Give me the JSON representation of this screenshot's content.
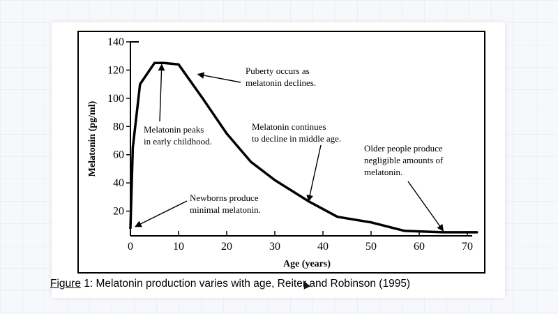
{
  "chart_data": {
    "type": "line",
    "xlabel": "Age (years)",
    "ylabel": "Melatonin (pg/ml)",
    "xlim": [
      0,
      70
    ],
    "ylim": [
      0,
      140
    ],
    "xticks": [
      0,
      10,
      20,
      30,
      40,
      50,
      60,
      70
    ],
    "yticks": [
      20,
      40,
      60,
      80,
      100,
      120,
      140
    ],
    "grid": false,
    "series": [
      {
        "x": [
          0,
          0.5,
          2,
          5,
          7,
          10,
          15,
          20,
          25,
          30,
          37,
          43,
          50,
          57,
          65,
          72
        ],
        "y": [
          8,
          65,
          110,
          125,
          125,
          124,
          100,
          75,
          55,
          42,
          27,
          16,
          12,
          6,
          5,
          5
        ]
      }
    ],
    "annotations": [
      {
        "id": "puberty",
        "lines": [
          "Puberty occurs as",
          "melatonin declines."
        ],
        "points_to": {
          "x": 14,
          "y": 117
        }
      },
      {
        "id": "peak",
        "lines": [
          "Melatonin peaks",
          "in early childhood."
        ],
        "points_to": {
          "x": 6.5,
          "y": 124
        }
      },
      {
        "id": "middle-age",
        "lines": [
          "Melatonin continues",
          "to decline in middle age."
        ],
        "points_to": {
          "x": 37,
          "y": 27
        }
      },
      {
        "id": "older",
        "lines": [
          "Older people produce",
          "negligible amounts of",
          "melatonin."
        ],
        "points_to": {
          "x": 65,
          "y": 6
        }
      },
      {
        "id": "newborns",
        "lines": [
          "Newborns produce",
          "minimal melatonin."
        ],
        "points_to": {
          "x": 1,
          "y": 9
        }
      }
    ]
  },
  "caption": {
    "prefix": "Figure",
    "text": " 1: Melatonin production varies with age, Reiter and Robinson (1995)"
  }
}
